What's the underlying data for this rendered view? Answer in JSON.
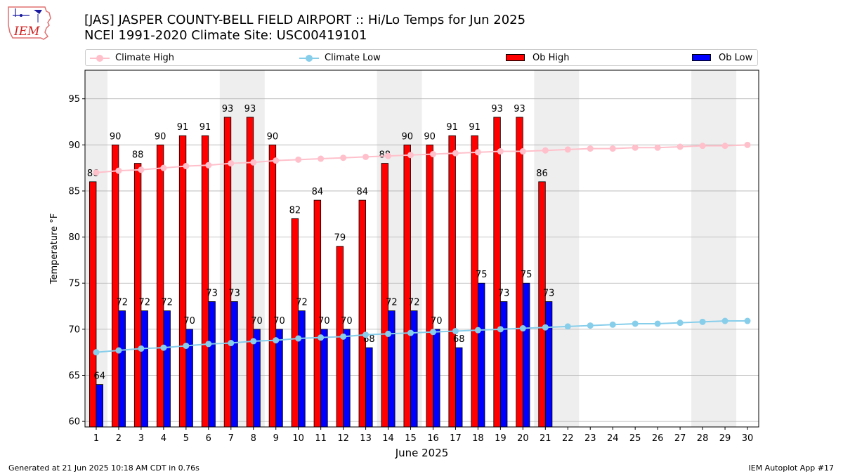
{
  "header": {
    "title_line1": "[JAS] JASPER COUNTY-BELL FIELD AIRPORT :: Hi/Lo Temps for Jun 2025",
    "title_line2": "NCEI 1991-2020 Climate Site: USC00419101",
    "logo_text": "IEM"
  },
  "footer": {
    "left": "Generated at 21 Jun 2025 10:18 AM CDT in 0.76s",
    "right": "IEM Autoplot App #17"
  },
  "colors": {
    "ob_high": "#ff0000",
    "ob_low": "#0000ff",
    "climate_high": "#ffc0cb",
    "climate_low": "#87ceeb",
    "weekend_shade": "#eeeeee",
    "grid": "#b0b0b0"
  },
  "chart_data": {
    "type": "bar",
    "xlabel": "June 2025",
    "ylabel": "Temperature °F",
    "ylim": [
      59.4,
      98.1
    ],
    "yticks": [
      60,
      65,
      70,
      75,
      80,
      85,
      90,
      95
    ],
    "days": [
      1,
      2,
      3,
      4,
      5,
      6,
      7,
      8,
      9,
      10,
      11,
      12,
      13,
      14,
      15,
      16,
      17,
      18,
      19,
      20,
      21,
      22,
      23,
      24,
      25,
      26,
      27,
      28,
      29,
      30
    ],
    "weekend_spans": [
      [
        1,
        1
      ],
      [
        7,
        8
      ],
      [
        14,
        15
      ],
      [
        21,
        22
      ],
      [
        28,
        29
      ]
    ],
    "grid": "horizontal",
    "legend_position": "top",
    "series": [
      {
        "name": "Climate High",
        "type": "line",
        "values": [
          87.0,
          87.2,
          87.3,
          87.5,
          87.7,
          87.8,
          88.0,
          88.1,
          88.3,
          88.4,
          88.5,
          88.6,
          88.7,
          88.8,
          88.9,
          89.0,
          89.1,
          89.2,
          89.3,
          89.3,
          89.4,
          89.5,
          89.6,
          89.6,
          89.7,
          89.7,
          89.8,
          89.9,
          89.9,
          90.0
        ]
      },
      {
        "name": "Climate Low",
        "type": "line",
        "values": [
          67.5,
          67.7,
          67.9,
          68.0,
          68.2,
          68.4,
          68.5,
          68.7,
          68.8,
          69.0,
          69.1,
          69.2,
          69.4,
          69.5,
          69.6,
          69.7,
          69.8,
          69.9,
          70.0,
          70.1,
          70.2,
          70.3,
          70.4,
          70.5,
          70.6,
          70.6,
          70.7,
          70.8,
          70.9,
          70.9
        ]
      },
      {
        "name": "Ob High",
        "type": "bar",
        "values": [
          86,
          90,
          88,
          90,
          91,
          91,
          93,
          93,
          90,
          82,
          84,
          79,
          84,
          88,
          90,
          90,
          91,
          91,
          93,
          93,
          86
        ]
      },
      {
        "name": "Ob Low",
        "type": "bar",
        "values": [
          64,
          72,
          72,
          72,
          70,
          73,
          73,
          70,
          70,
          72,
          70,
          70,
          68,
          72,
          72,
          70,
          68,
          75,
          73,
          75,
          73
        ]
      }
    ]
  }
}
